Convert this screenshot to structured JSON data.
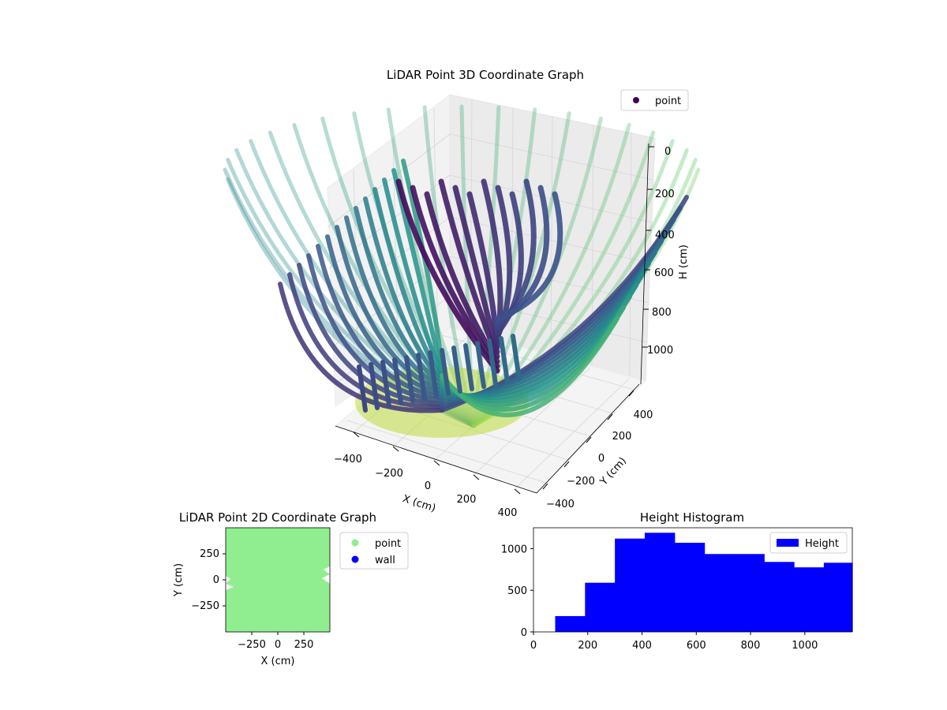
{
  "chart_data": [
    {
      "type": "scatter",
      "title": "LiDAR Point 3D Coordinate Graph",
      "xlabel": "X (cm)",
      "ylabel": "Y (cm)",
      "zlabel": "H (cm)",
      "xlim": [
        -480,
        480
      ],
      "ylim": [
        -480,
        480
      ],
      "zlim": [
        0,
        1200
      ],
      "z_inverted": true,
      "x_ticks": [
        "−400",
        "−200",
        "0",
        "200",
        "400"
      ],
      "y_ticks": [
        "−400",
        "−200",
        "0",
        "200",
        "400"
      ],
      "z_ticks": [
        "0",
        "200",
        "400",
        "600",
        "800",
        "1000"
      ],
      "colormap": "viridis",
      "legend": {
        "entries": [
          "point"
        ],
        "placement": "upper-right",
        "color": "#440154"
      },
      "grid": true
    },
    {
      "type": "scatter",
      "title": "LiDAR Point 2D Coordinate Graph",
      "xlabel": "X (cm)",
      "ylabel": "Y (cm)",
      "xlim": [
        -490,
        490
      ],
      "ylim": [
        -490,
        490
      ],
      "x_ticks": [
        "−250",
        "0",
        "250"
      ],
      "y_ticks": [
        "−250",
        "0",
        "250"
      ],
      "series": [
        {
          "name": "point",
          "color": "#90ee90"
        },
        {
          "name": "wall",
          "color": "#0000ff"
        }
      ],
      "legend_placement": "outside-right"
    },
    {
      "type": "bar",
      "title": "Height Histogram",
      "xlim": [
        0,
        1175
      ],
      "ylim": [
        0,
        1250
      ],
      "x_ticks": [
        "0",
        "200",
        "400",
        "600",
        "800",
        "1000"
      ],
      "y_ticks": [
        "0",
        "500",
        "1000"
      ],
      "bin_edges": [
        80,
        190,
        300,
        410,
        520,
        630,
        740,
        850,
        960,
        1070,
        1175
      ],
      "counts": [
        190,
        590,
        1120,
        1190,
        1070,
        935,
        935,
        840,
        775,
        830
      ],
      "series": [
        {
          "name": "Height",
          "color": "#0000ff"
        }
      ],
      "legend_placement": "upper-right"
    }
  ]
}
